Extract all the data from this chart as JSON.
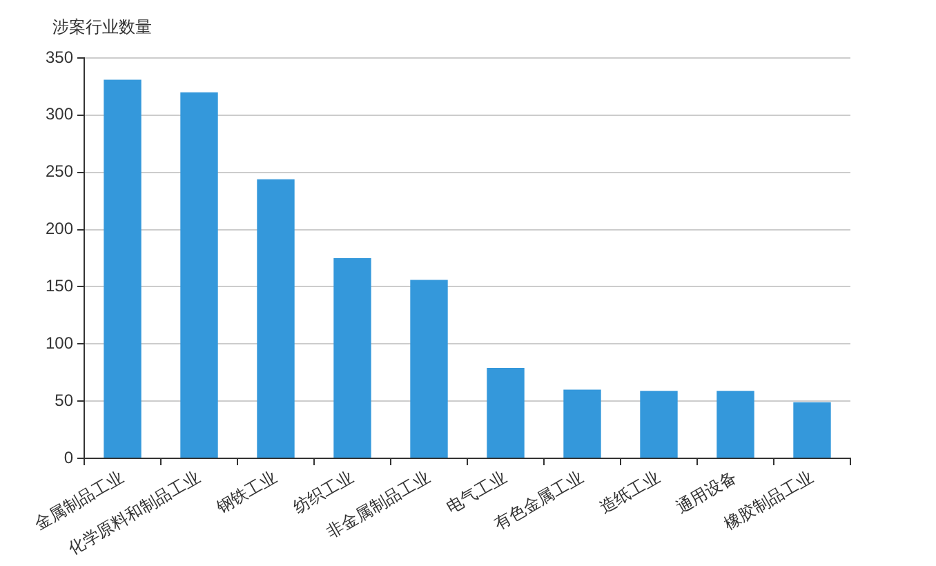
{
  "chart_data": {
    "type": "bar",
    "ylabel": "涉案行业数量",
    "categories": [
      "金属制品工业",
      "化学原料和制品工业",
      "钢铁工业",
      "纺织工业",
      "非金属制品工业",
      "电气工业",
      "有色金属工业",
      "造纸工业",
      "通用设备",
      "橡胶制品工业"
    ],
    "values": [
      331,
      320,
      244,
      175,
      156,
      79,
      60,
      59,
      59,
      49
    ],
    "color": "#3498db",
    "ylim": [
      0,
      350
    ],
    "yticks": [
      0,
      50,
      100,
      150,
      200,
      250,
      300,
      350
    ],
    "grid": "y"
  }
}
